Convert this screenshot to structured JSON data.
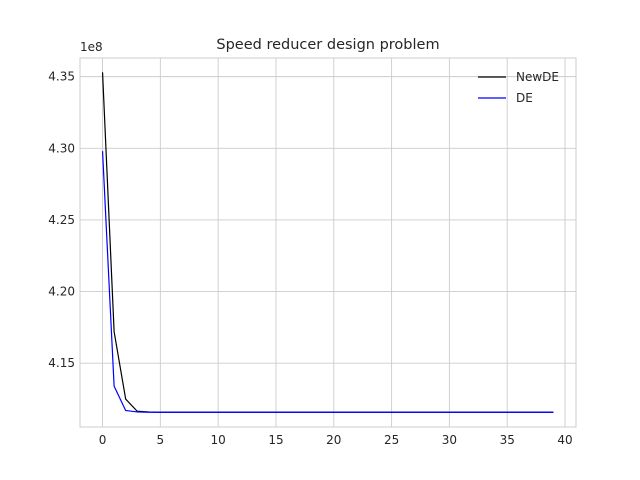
{
  "chart_data": {
    "type": "line",
    "title": "Speed reducer design problem",
    "xlabel": "",
    "ylabel": "",
    "y_offset_label": "1e8",
    "xlim": [
      -1.95,
      40.95
    ],
    "ylim": [
      411.0,
      436.3
    ],
    "x_ticks": [
      0,
      5,
      10,
      15,
      20,
      25,
      30,
      35,
      40
    ],
    "x_tick_labels": [
      "0",
      "5",
      "10",
      "15",
      "20",
      "25",
      "30",
      "35",
      "40"
    ],
    "y_ticks": [
      414.5,
      415.0,
      415.5,
      416.0,
      416.5,
      417.0,
      417.5,
      418.0,
      418.5,
      419.0,
      419.5,
      420.0,
      420.5,
      421.0,
      421.5,
      422.0,
      422.5,
      423.0,
      423.5,
      424.0,
      424.5,
      425.0,
      425.5,
      426.0,
      426.5,
      427.0,
      427.5,
      428.0,
      428.5,
      429.0,
      429.5,
      430.0,
      430.5,
      431.0,
      431.5,
      432.0,
      432.5,
      433.0,
      433.5,
      434.0,
      434.5,
      435.0
    ],
    "y_tick_values": [
      4.15,
      4.2,
      4.25,
      4.3,
      4.35
    ],
    "y_tick_labels": [
      "4.15",
      "4.20",
      "4.25",
      "4.30",
      "4.35"
    ],
    "grid": true,
    "legend_position": "top-right",
    "series": [
      {
        "name": "NewDE",
        "color": "#000000",
        "x": [
          0,
          1,
          2,
          3,
          4,
          5,
          6,
          7,
          8,
          9,
          10,
          11,
          12,
          13,
          14,
          15,
          16,
          17,
          18,
          19,
          20,
          21,
          22,
          23,
          24,
          25,
          26,
          27,
          28,
          29,
          30,
          31,
          32,
          33,
          34,
          35,
          36,
          37,
          38,
          39
        ],
        "values": [
          4.353,
          4.172,
          4.125,
          4.1165,
          4.116,
          4.1158,
          4.1158,
          4.1158,
          4.1158,
          4.1158,
          4.1158,
          4.1158,
          4.1158,
          4.1158,
          4.1158,
          4.1158,
          4.1158,
          4.1158,
          4.1158,
          4.1158,
          4.1158,
          4.1158,
          4.1158,
          4.1158,
          4.1158,
          4.1158,
          4.1158,
          4.1158,
          4.1158,
          4.1158,
          4.1158,
          4.1158,
          4.1158,
          4.1158,
          4.1158,
          4.1158,
          4.1158,
          4.1158,
          4.1158,
          4.1158
        ]
      },
      {
        "name": "DE",
        "color": "#0000ff",
        "x": [
          0,
          1,
          2,
          3,
          4,
          5,
          6,
          7,
          8,
          9,
          10,
          11,
          12,
          13,
          14,
          15,
          16,
          17,
          18,
          19,
          20,
          21,
          22,
          23,
          24,
          25,
          26,
          27,
          28,
          29,
          30,
          31,
          32,
          33,
          34,
          35,
          36,
          37,
          38,
          39
        ],
        "values": [
          4.298,
          4.134,
          4.117,
          4.116,
          4.1158,
          4.1158,
          4.1158,
          4.1158,
          4.1158,
          4.1158,
          4.1158,
          4.1158,
          4.1158,
          4.1158,
          4.1158,
          4.1158,
          4.1158,
          4.1158,
          4.1158,
          4.1158,
          4.1158,
          4.1158,
          4.1158,
          4.1158,
          4.1158,
          4.1158,
          4.1158,
          4.1158,
          4.1158,
          4.1158,
          4.1158,
          4.1158,
          4.1158,
          4.1158,
          4.1158,
          4.1158,
          4.1158,
          4.1158,
          4.1158,
          4.1158
        ]
      }
    ]
  }
}
